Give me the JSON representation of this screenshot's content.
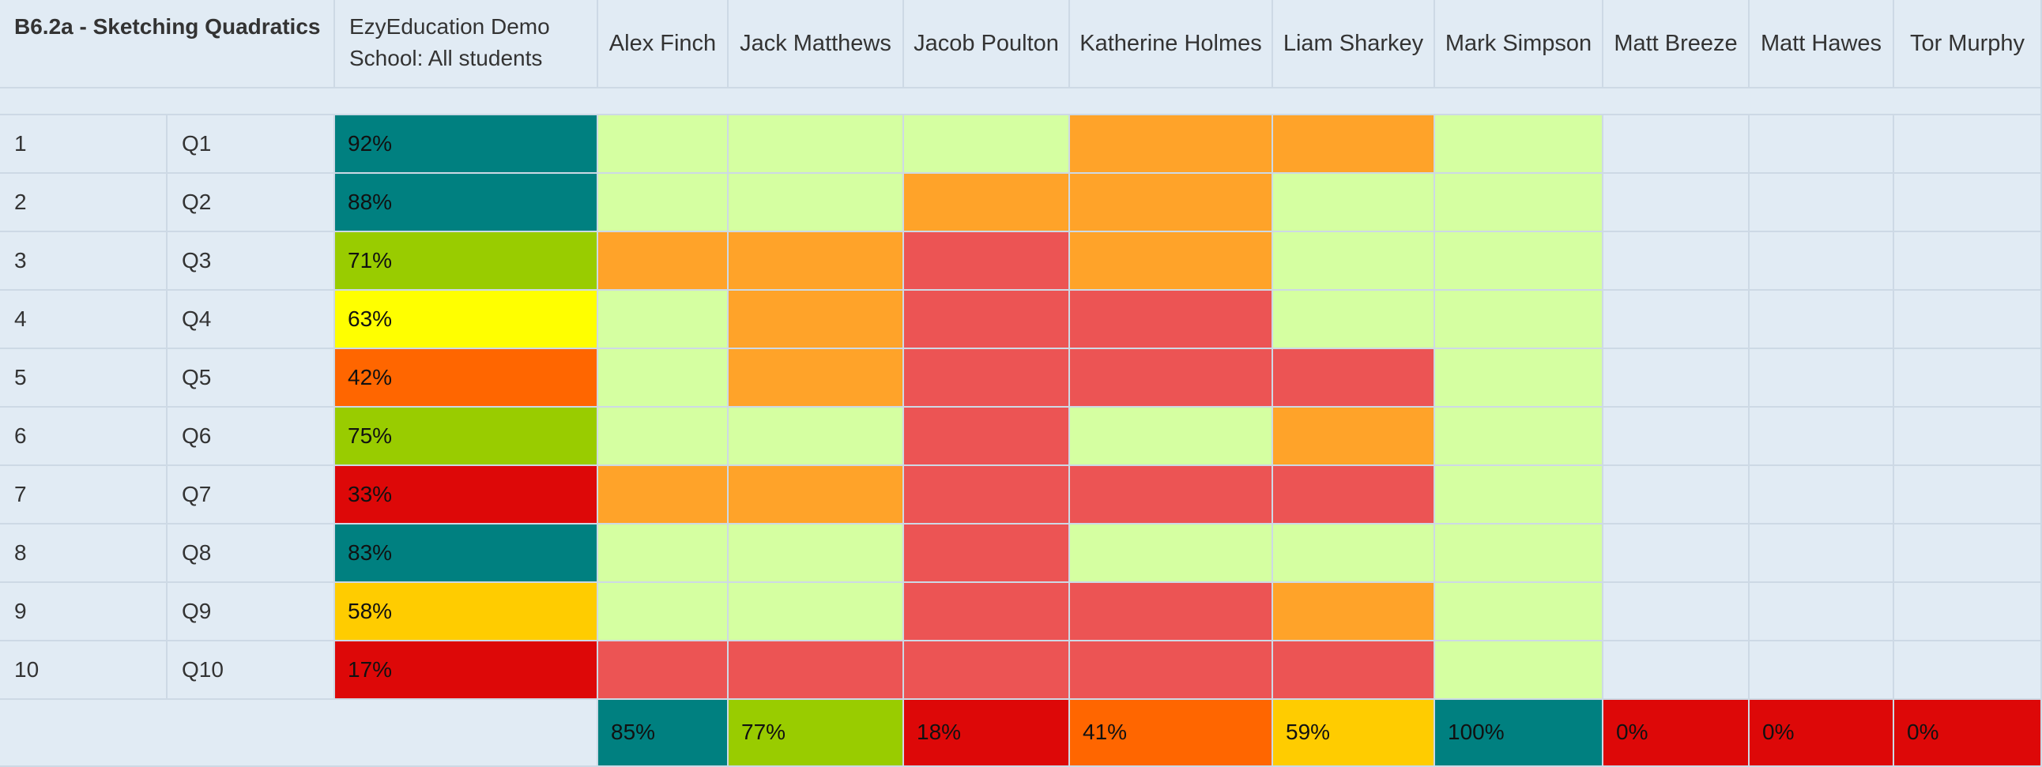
{
  "report": {
    "title": "B6.2a - Sketching Quadratics",
    "school_line1": "EzyEducation Demo",
    "school_line2": "School: All students"
  },
  "students": [
    {
      "name": "Alex Finch",
      "total": "85%",
      "total_band": "teal"
    },
    {
      "name": "Jack Matthews",
      "total": "77%",
      "total_band": "lime"
    },
    {
      "name": "Jacob Poulton",
      "total": "18%",
      "total_band": "red"
    },
    {
      "name": "Katherine Holmes",
      "total": "41%",
      "total_band": "orange"
    },
    {
      "name": "Liam Sharkey",
      "total": "59%",
      "total_band": "amber"
    },
    {
      "name": "Mark Simpson",
      "total": "100%",
      "total_band": "teal"
    },
    {
      "name": "Matt Breeze",
      "total": "0%",
      "total_band": "red"
    },
    {
      "name": "Matt Hawes",
      "total": "0%",
      "total_band": "red"
    },
    {
      "name": "Tor Murphy",
      "total": "0%",
      "total_band": "red"
    }
  ],
  "questions": [
    {
      "num": "1",
      "label": "Q1",
      "pct": "92%",
      "band": "teal",
      "results": [
        "correct",
        "correct",
        "correct",
        "partial",
        "partial",
        "correct",
        "none",
        "none",
        "none"
      ]
    },
    {
      "num": "2",
      "label": "Q2",
      "pct": "88%",
      "band": "teal",
      "results": [
        "correct",
        "correct",
        "partial",
        "partial",
        "correct",
        "correct",
        "none",
        "none",
        "none"
      ]
    },
    {
      "num": "3",
      "label": "Q3",
      "pct": "71%",
      "band": "lime",
      "results": [
        "partial",
        "partial",
        "wrong",
        "partial",
        "correct",
        "correct",
        "none",
        "none",
        "none"
      ]
    },
    {
      "num": "4",
      "label": "Q4",
      "pct": "63%",
      "band": "yellow",
      "results": [
        "correct",
        "partial",
        "wrong",
        "wrong",
        "correct",
        "correct",
        "none",
        "none",
        "none"
      ]
    },
    {
      "num": "5",
      "label": "Q5",
      "pct": "42%",
      "band": "orange",
      "results": [
        "correct",
        "partial",
        "wrong",
        "wrong",
        "wrong",
        "correct",
        "none",
        "none",
        "none"
      ]
    },
    {
      "num": "6",
      "label": "Q6",
      "pct": "75%",
      "band": "lime",
      "results": [
        "correct",
        "correct",
        "wrong",
        "correct",
        "partial",
        "correct",
        "none",
        "none",
        "none"
      ]
    },
    {
      "num": "7",
      "label": "Q7",
      "pct": "33%",
      "band": "red",
      "results": [
        "partial",
        "partial",
        "wrong",
        "wrong",
        "wrong",
        "correct",
        "none",
        "none",
        "none"
      ]
    },
    {
      "num": "8",
      "label": "Q8",
      "pct": "83%",
      "band": "teal",
      "results": [
        "correct",
        "correct",
        "wrong",
        "correct",
        "correct",
        "correct",
        "none",
        "none",
        "none"
      ]
    },
    {
      "num": "9",
      "label": "Q9",
      "pct": "58%",
      "band": "amber",
      "results": [
        "correct",
        "correct",
        "wrong",
        "wrong",
        "partial",
        "correct",
        "none",
        "none",
        "none"
      ]
    },
    {
      "num": "10",
      "label": "Q10",
      "pct": "17%",
      "band": "red",
      "results": [
        "wrong",
        "wrong",
        "wrong",
        "wrong",
        "wrong",
        "correct",
        "none",
        "none",
        "none"
      ]
    }
  ],
  "colors": {
    "background": "#e1ebf4",
    "border": "#cdd9e5",
    "bands": {
      "teal": "#008080",
      "lime": "#99cc00",
      "yellow": "#ffff00",
      "amber": "#ffcc00",
      "orange": "#ff6600",
      "red": "#dd0808"
    },
    "results": {
      "correct": "#d5ffa1",
      "partial": "#ffa329",
      "wrong": "#ec5454",
      "none": "#e1ebf4"
    }
  }
}
